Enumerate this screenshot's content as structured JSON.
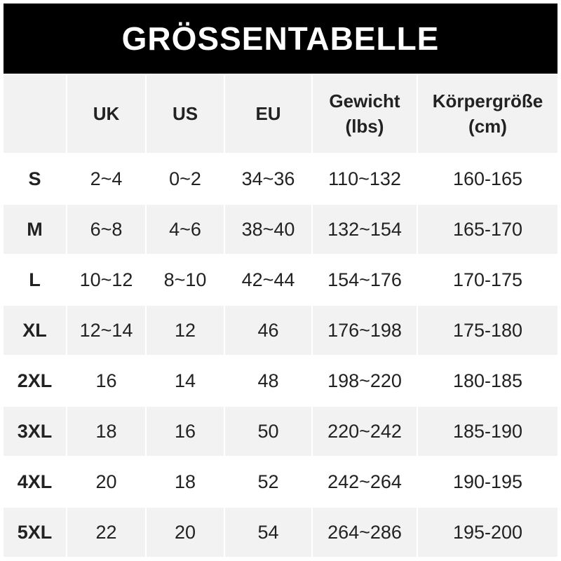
{
  "title": "GRÖSSENTABELLE",
  "headers": [
    "",
    "UK",
    "US",
    "EU",
    "Gewicht (lbs)",
    "Körpergröße (cm)"
  ],
  "header_lines": [
    [
      ""
    ],
    [
      "UK"
    ],
    [
      "US"
    ],
    [
      "EU"
    ],
    [
      "Gewicht",
      "(lbs)"
    ],
    [
      "Körpergröße",
      "(cm)"
    ]
  ],
  "rows": [
    [
      "S",
      "2~4",
      "0~2",
      "34~36",
      "110~132",
      "160-165"
    ],
    [
      "M",
      "6~8",
      "4~6",
      "38~40",
      "132~154",
      "165-170"
    ],
    [
      "L",
      "10~12",
      "8~10",
      "42~44",
      "154~176",
      "170-175"
    ],
    [
      "XL",
      "12~14",
      "12",
      "46",
      "176~198",
      "175-180"
    ],
    [
      "2XL",
      "16",
      "14",
      "48",
      "198~220",
      "180-185"
    ],
    [
      "3XL",
      "18",
      "16",
      "50",
      "220~242",
      "185-190"
    ],
    [
      "4XL",
      "20",
      "18",
      "52",
      "242~264",
      "190-195"
    ],
    [
      "5XL",
      "22",
      "20",
      "54",
      "264~286",
      "195-200"
    ]
  ],
  "colors": {
    "title_bg": "#000000",
    "stripe": "#f2f2f2"
  }
}
